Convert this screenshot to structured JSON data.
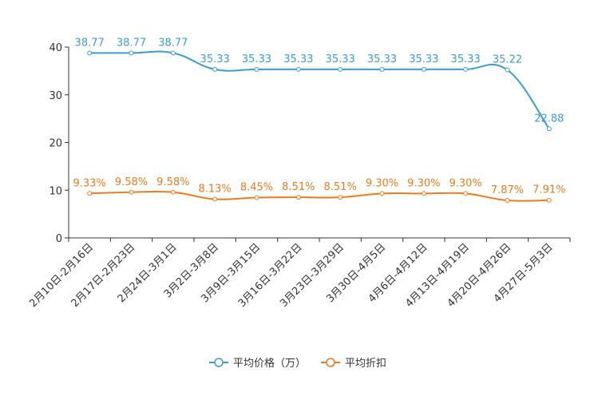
{
  "chart_data": {
    "type": "line",
    "title": "",
    "xlabel": "",
    "ylabel": "",
    "ylim": [
      0,
      40
    ],
    "yticks": [
      0,
      10,
      20,
      30,
      40
    ],
    "grid": false,
    "legend_position": "bottom",
    "categories": [
      "2月10日-2月16日",
      "2月17日-2月23日",
      "2月24日-3月1日",
      "3月2日-3月8日",
      "3月9日-3月15日",
      "3月16日-3月22日",
      "3月23日-3月29日",
      "3月30日-4月5日",
      "4月6日-4月12日",
      "4月13日-4月19日",
      "4月20日-4月26日",
      "4月27日-5月3日"
    ],
    "series": [
      {
        "name": "平均价格（万）",
        "color": "#3a9dd0",
        "values": [
          38.77,
          38.77,
          38.77,
          35.33,
          35.33,
          35.33,
          35.33,
          35.33,
          35.33,
          35.33,
          35.22,
          22.88
        ],
        "labels": [
          "38.77",
          "38.77",
          "38.77",
          "35.33",
          "35.33",
          "35.33",
          "35.33",
          "35.33",
          "35.33",
          "35.33",
          "35.22",
          "22.88"
        ]
      },
      {
        "name": "平均折扣",
        "color": "#f07a1a",
        "values": [
          9.33,
          9.58,
          9.58,
          8.13,
          8.45,
          8.51,
          8.51,
          9.3,
          9.3,
          9.3,
          7.87,
          7.91
        ],
        "labels": [
          "9.33%",
          "9.58%",
          "9.58%",
          "8.13%",
          "8.45%",
          "8.51%",
          "8.51%",
          "9.30%",
          "9.30%",
          "9.30%",
          "7.87%",
          "7.91%"
        ]
      }
    ]
  }
}
